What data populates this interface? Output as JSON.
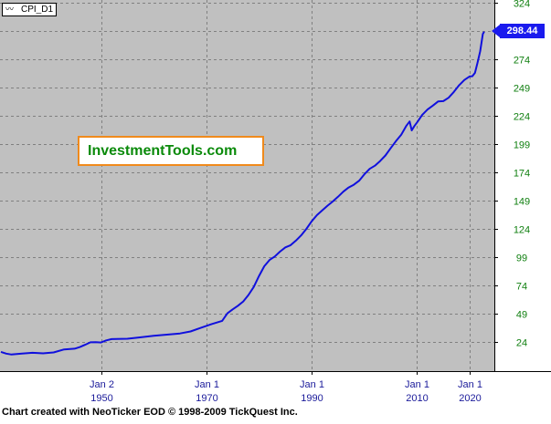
{
  "legend": {
    "series_label": "CPI_D1",
    "icon": "line-chart-icon"
  },
  "watermark": {
    "text": "InvestmentTools.com"
  },
  "footer": {
    "text": "Chart created with NeoTicker EOD © 1998-2009 TickQuest Inc."
  },
  "last_value_label": "298.44",
  "colors": {
    "plot_background": "#c0c0c0",
    "grid": "#808080",
    "line": "#1010dd",
    "y_tick_text": "#0f7f0f",
    "x_tick_text": "#1a1a9a",
    "last_label_bg": "#1a1aee"
  },
  "chart_data": {
    "type": "line",
    "x_axis": {
      "ticks": [
        {
          "date": 1950.08,
          "label_top": "Jan 2",
          "label_bottom": "1950"
        },
        {
          "date": 1970.0,
          "label_top": "Jan 1",
          "label_bottom": "1970"
        },
        {
          "date": 1990.0,
          "label_top": "Jan 1",
          "label_bottom": "1990"
        },
        {
          "date": 2010.0,
          "label_top": "Jan 1",
          "label_bottom": "2010"
        },
        {
          "date": 2020.0,
          "label_top": "Jan 1",
          "label_bottom": "2020"
        }
      ],
      "range": [
        1931.0,
        2025.0
      ]
    },
    "y_axis": {
      "ticks": [
        24,
        49,
        74,
        99,
        124,
        149,
        174,
        199,
        224,
        249,
        274,
        299,
        324
      ],
      "range": [
        9,
        324
      ]
    },
    "grid": true,
    "series": [
      {
        "points": [
          [
            1931.0,
            15.2
          ],
          [
            1932.0,
            13.7
          ],
          [
            1933.0,
            12.9
          ],
          [
            1935.0,
            13.7
          ],
          [
            1937.0,
            14.4
          ],
          [
            1939.0,
            13.9
          ],
          [
            1941.0,
            14.7
          ],
          [
            1943.0,
            17.4
          ],
          [
            1945.0,
            18.0
          ],
          [
            1946.0,
            19.5
          ],
          [
            1947.0,
            21.5
          ],
          [
            1948.0,
            23.7
          ],
          [
            1949.0,
            23.8
          ],
          [
            1950.0,
            23.5
          ],
          [
            1951.0,
            25.4
          ],
          [
            1952.0,
            26.5
          ],
          [
            1955.0,
            26.8
          ],
          [
            1957.0,
            27.8
          ],
          [
            1960.0,
            29.4
          ],
          [
            1963.0,
            30.6
          ],
          [
            1965.0,
            31.5
          ],
          [
            1967.0,
            33.3
          ],
          [
            1969.0,
            36.6
          ],
          [
            1971.0,
            39.8
          ],
          [
            1973.0,
            42.6
          ],
          [
            1974.0,
            49.3
          ],
          [
            1975.0,
            52.8
          ],
          [
            1976.0,
            56.0
          ],
          [
            1977.0,
            59.8
          ],
          [
            1978.0,
            65.5
          ],
          [
            1979.0,
            72.6
          ],
          [
            1980.0,
            82.4
          ],
          [
            1981.0,
            90.9
          ],
          [
            1982.0,
            96.5
          ],
          [
            1983.0,
            99.6
          ],
          [
            1984.0,
            103.9
          ],
          [
            1985.0,
            107.6
          ],
          [
            1986.0,
            109.6
          ],
          [
            1987.0,
            113.6
          ],
          [
            1988.0,
            118.3
          ],
          [
            1989.0,
            124.0
          ],
          [
            1990.0,
            130.7
          ],
          [
            1991.0,
            136.2
          ],
          [
            1992.0,
            140.3
          ],
          [
            1993.0,
            144.5
          ],
          [
            1994.0,
            148.2
          ],
          [
            1995.0,
            152.4
          ],
          [
            1996.0,
            156.9
          ],
          [
            1997.0,
            160.5
          ],
          [
            1998.0,
            163.0
          ],
          [
            1999.0,
            166.6
          ],
          [
            2000.0,
            172.2
          ],
          [
            2001.0,
            177.1
          ],
          [
            2002.0,
            179.9
          ],
          [
            2003.0,
            184.0
          ],
          [
            2004.0,
            188.9
          ],
          [
            2005.0,
            195.3
          ],
          [
            2006.0,
            201.6
          ],
          [
            2007.0,
            207.3
          ],
          [
            2008.0,
            215.3
          ],
          [
            2008.6,
            219.0
          ],
          [
            2009.0,
            211.1
          ],
          [
            2009.5,
            215.0
          ],
          [
            2010.0,
            218.1
          ],
          [
            2011.0,
            224.9
          ],
          [
            2012.0,
            229.6
          ],
          [
            2013.0,
            233.0
          ],
          [
            2014.0,
            236.7
          ],
          [
            2015.0,
            237.0
          ],
          [
            2016.0,
            240.0
          ],
          [
            2017.0,
            245.1
          ],
          [
            2018.0,
            251.1
          ],
          [
            2019.0,
            255.7
          ],
          [
            2020.0,
            258.8
          ],
          [
            2020.5,
            259.0
          ],
          [
            2021.0,
            262.0
          ],
          [
            2021.5,
            270.9
          ],
          [
            2022.0,
            281.1
          ],
          [
            2022.5,
            296.3
          ],
          [
            2022.75,
            298.44
          ]
        ]
      }
    ]
  }
}
